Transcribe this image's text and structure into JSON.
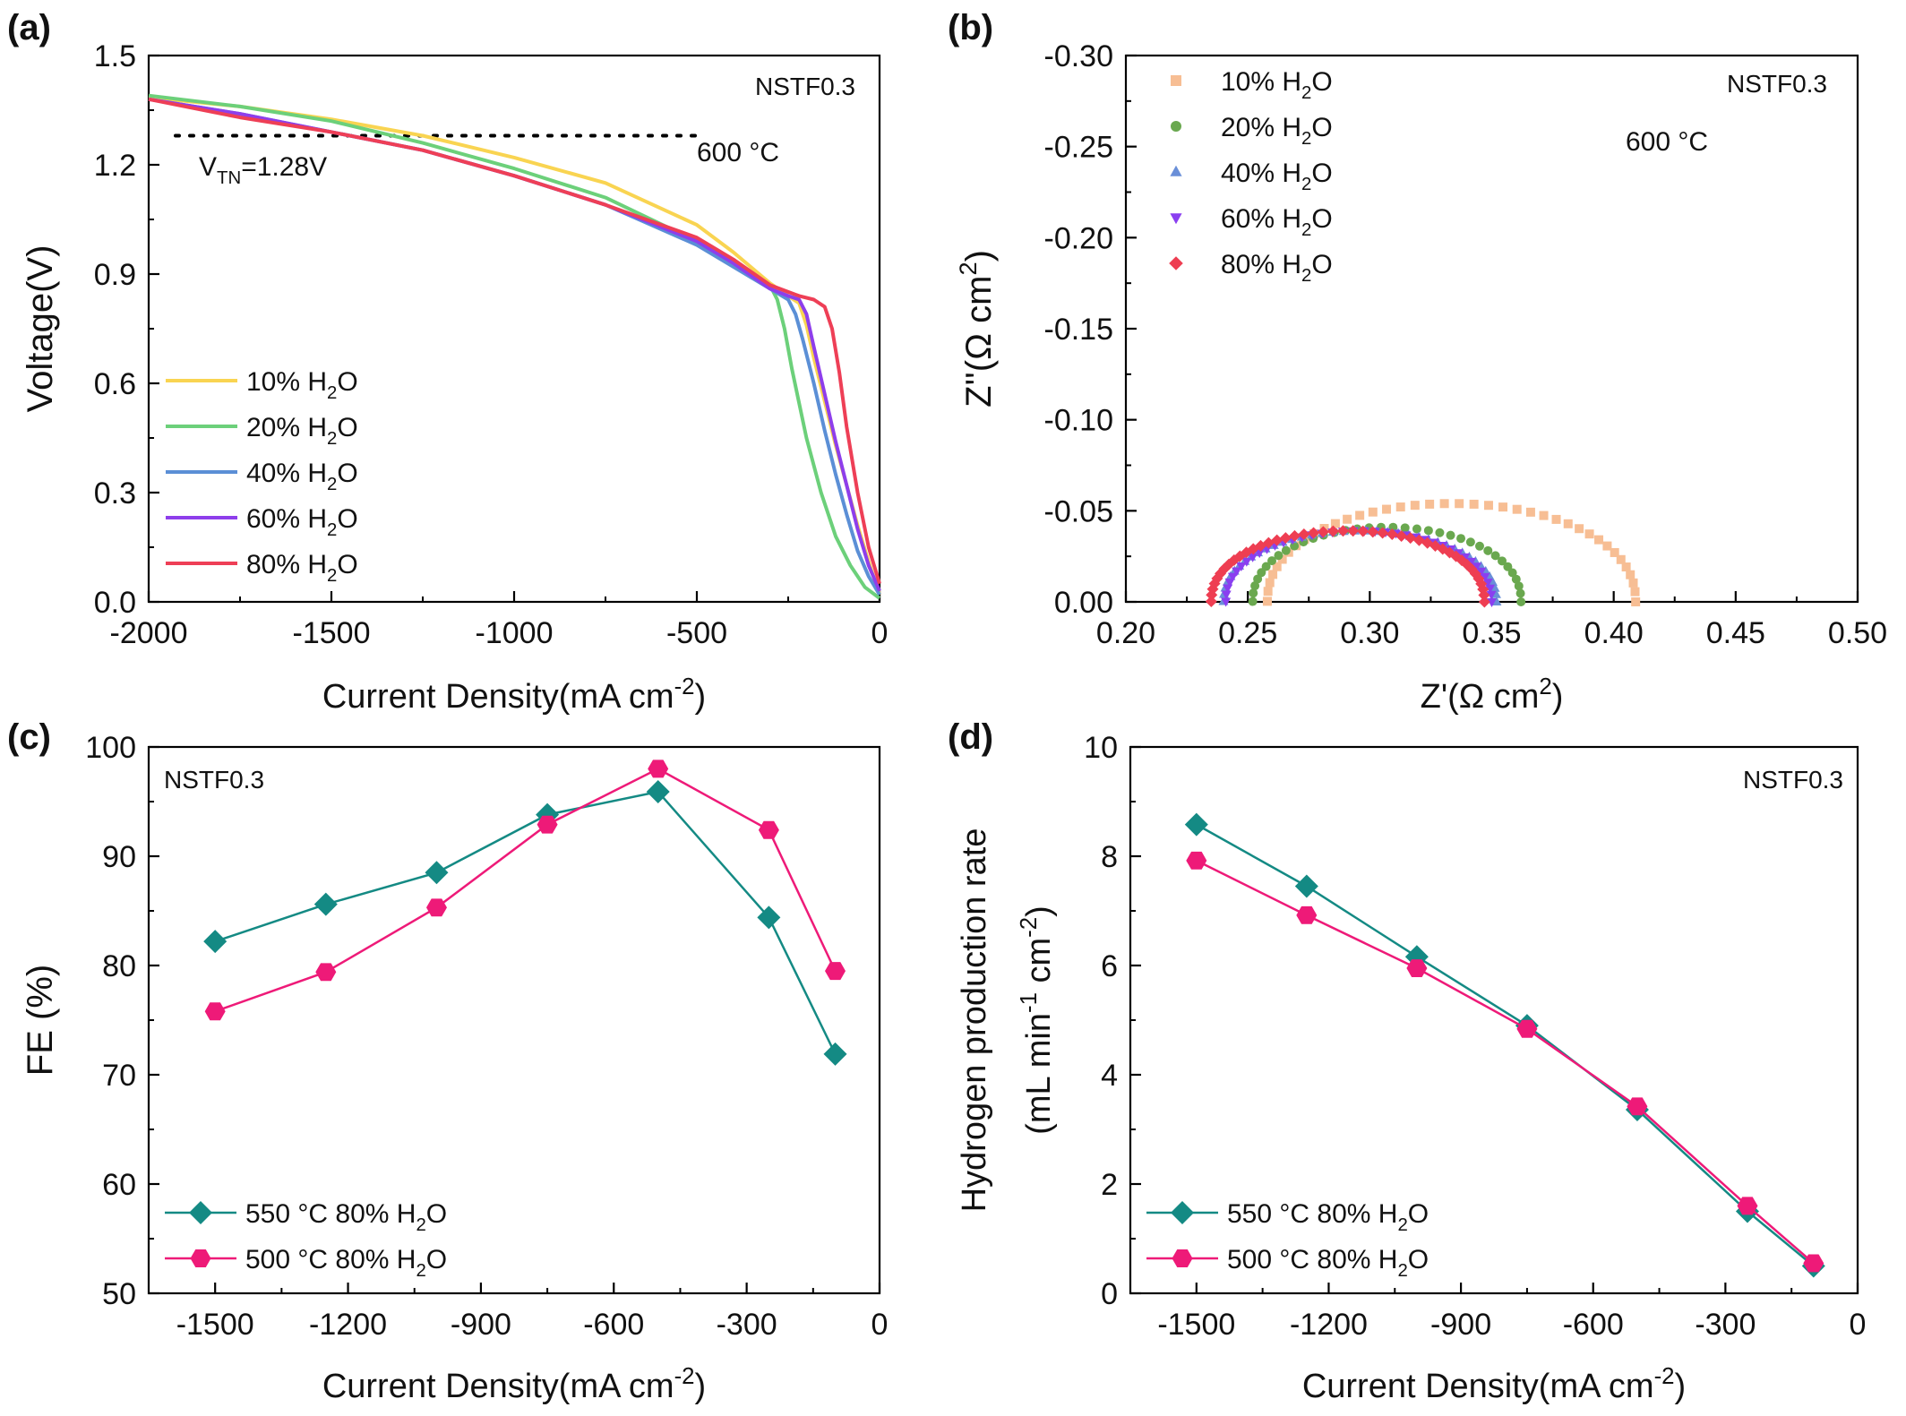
{
  "chart_data": [
    {
      "panel": "(a)",
      "type": "line",
      "xlabel": "Current Density(mA cm",
      "xlabel_sup": "-2",
      "xlabel_end": ")",
      "ylabel": "Voltage(V)",
      "xlim": [
        -2000,
        0
      ],
      "ylim": [
        0,
        1.5
      ],
      "xticks": [
        -2000,
        -1500,
        -1000,
        -500,
        0
      ],
      "yticks": [
        0.0,
        0.3,
        0.6,
        0.9,
        1.2,
        1.5
      ],
      "ytick_labels": [
        "0.0",
        "0.3",
        "0.6",
        "0.9",
        "1.2",
        "1.5"
      ],
      "annotations": {
        "sample": "NSTF0.3",
        "temperature": "600 °C",
        "thermoneutral_main": "V",
        "thermoneutral_sub": "TN",
        "thermoneutral_rest": "=1.28V",
        "thermoneutral_value": 1.28
      },
      "legend_position": "left",
      "series": [
        {
          "name": "10% H",
          "name_sub": "2",
          "name_end": "O",
          "color": "#F9D451",
          "x": [
            -2000,
            -1750,
            -1500,
            -1250,
            -1000,
            -750,
            -500,
            -400,
            -300,
            -250,
            -220,
            -200,
            -180,
            -150,
            -120,
            -90,
            -60,
            -30,
            0
          ],
          "y": [
            1.385,
            1.36,
            1.325,
            1.28,
            1.22,
            1.15,
            1.035,
            0.96,
            0.875,
            0.84,
            0.82,
            0.76,
            0.67,
            0.55,
            0.43,
            0.32,
            0.21,
            0.11,
            0.02
          ]
        },
        {
          "name": "20% H",
          "name_sub": "2",
          "name_end": "O",
          "color": "#6CD07A",
          "x": [
            -2000,
            -1750,
            -1500,
            -1250,
            -1000,
            -750,
            -500,
            -350,
            -300,
            -280,
            -260,
            -240,
            -200,
            -160,
            -120,
            -80,
            -40,
            0
          ],
          "y": [
            1.39,
            1.36,
            1.32,
            1.26,
            1.19,
            1.11,
            0.99,
            0.89,
            0.87,
            0.83,
            0.75,
            0.64,
            0.45,
            0.3,
            0.18,
            0.1,
            0.04,
            0.01
          ]
        },
        {
          "name": "40% H",
          "name_sub": "2",
          "name_end": "O",
          "color": "#5B8FD6",
          "x": [
            -2000,
            -1750,
            -1500,
            -1250,
            -1000,
            -750,
            -500,
            -400,
            -300,
            -250,
            -230,
            -210,
            -180,
            -150,
            -120,
            -90,
            -60,
            -30,
            0
          ],
          "y": [
            1.38,
            1.34,
            1.29,
            1.24,
            1.17,
            1.09,
            0.98,
            0.92,
            0.86,
            0.83,
            0.79,
            0.72,
            0.6,
            0.47,
            0.35,
            0.24,
            0.14,
            0.07,
            0.02
          ]
        },
        {
          "name": "60% H",
          "name_sub": "2",
          "name_end": "O",
          "color": "#8E3EEB",
          "x": [
            -2000,
            -1750,
            -1500,
            -1250,
            -1000,
            -750,
            -500,
            -400,
            -300,
            -250,
            -220,
            -200,
            -180,
            -150,
            -120,
            -90,
            -60,
            -30,
            0
          ],
          "y": [
            1.38,
            1.34,
            1.29,
            1.24,
            1.17,
            1.09,
            0.99,
            0.93,
            0.86,
            0.84,
            0.83,
            0.79,
            0.7,
            0.57,
            0.44,
            0.32,
            0.2,
            0.1,
            0.03
          ]
        },
        {
          "name": "80% H",
          "name_sub": "2",
          "name_end": "O",
          "color": "#EE3F56",
          "x": [
            -2000,
            -1750,
            -1500,
            -1250,
            -1000,
            -750,
            -500,
            -400,
            -300,
            -220,
            -180,
            -150,
            -130,
            -110,
            -90,
            -60,
            -30,
            0
          ],
          "y": [
            1.38,
            1.33,
            1.29,
            1.24,
            1.17,
            1.09,
            1.0,
            0.94,
            0.87,
            0.84,
            0.83,
            0.81,
            0.75,
            0.63,
            0.48,
            0.3,
            0.15,
            0.05
          ]
        }
      ]
    },
    {
      "panel": "(b)",
      "type": "scatter",
      "xlabel": "Z'(Ω cm",
      "xlabel_sup": "2",
      "xlabel_end": ")",
      "ylabel": "Z''(Ω cm",
      "ylabel_sup": "2",
      "ylabel_end": ")",
      "xlim": [
        0.2,
        0.5
      ],
      "ylim": [
        0.0,
        -0.3
      ],
      "xticks": [
        0.2,
        0.25,
        0.3,
        0.35,
        0.4,
        0.45,
        0.5
      ],
      "xtick_labels": [
        "0.20",
        "0.25",
        "0.30",
        "0.35",
        "0.40",
        "0.45",
        "0.50"
      ],
      "yticks": [
        0.0,
        -0.05,
        -0.1,
        -0.15,
        -0.2,
        -0.25,
        -0.3
      ],
      "ytick_labels": [
        "0.00",
        "-0.05",
        "-0.10",
        "-0.15",
        "-0.20",
        "-0.25",
        "-0.30"
      ],
      "annotations": {
        "sample": "NSTF0.3",
        "temperature": "600 °C"
      },
      "legend_position": "top-left",
      "series": [
        {
          "name": "10% H",
          "name_sub": "2",
          "name_end": "O",
          "color": "#F7BE94",
          "marker": "square",
          "R0": 0.258,
          "R1": 0.409,
          "peak": 0.054,
          "n": 40
        },
        {
          "name": "20% H",
          "name_sub": "2",
          "name_end": "O",
          "color": "#6AA84F",
          "marker": "circle",
          "R0": 0.252,
          "R1": 0.362,
          "peak": 0.041,
          "n": 36
        },
        {
          "name": "40% H",
          "name_sub": "2",
          "name_end": "O",
          "color": "#6A8FD8",
          "marker": "triangle-up",
          "R0": 0.24,
          "R1": 0.352,
          "peak": 0.039,
          "n": 40
        },
        {
          "name": "60% H",
          "name_sub": "2",
          "name_end": "O",
          "color": "#8A3FF0",
          "marker": "triangle-down",
          "R0": 0.241,
          "R1": 0.35,
          "peak": 0.039,
          "n": 40
        },
        {
          "name": "80% H",
          "name_sub": "2",
          "name_end": "O",
          "color": "#EE3E52",
          "marker": "diamond",
          "R0": 0.235,
          "R1": 0.347,
          "peak": 0.039,
          "n": 44
        }
      ]
    },
    {
      "panel": "(c)",
      "type": "line",
      "xlabel": "Current Density(mA cm",
      "xlabel_sup": "-2",
      "xlabel_end": ")",
      "ylabel": "FE (%)",
      "xlim": [
        -1650,
        0
      ],
      "ylim": [
        50,
        100
      ],
      "xticks": [
        -1500,
        -1200,
        -900,
        -600,
        -300,
        0
      ],
      "yticks": [
        50,
        60,
        70,
        80,
        90,
        100
      ],
      "annotations": {
        "sample": "NSTF0.3"
      },
      "legend_position": "bottom-left",
      "series": [
        {
          "name": "550 °C 80% H",
          "name_sub": "2",
          "name_end": "O",
          "color": "#148A84",
          "marker": "diamond",
          "x": [
            -1500,
            -1250,
            -1000,
            -750,
            -500,
            -250,
            -100
          ],
          "y": [
            82.2,
            85.6,
            88.5,
            93.8,
            95.9,
            84.4,
            71.9
          ]
        },
        {
          "name": "500 °C 80% H",
          "name_sub": "2",
          "name_end": "O",
          "color": "#EE1A78",
          "marker": "hexagon",
          "x": [
            -1500,
            -1250,
            -1000,
            -750,
            -500,
            -250,
            -100
          ],
          "y": [
            75.8,
            79.4,
            85.3,
            92.9,
            98.0,
            92.4,
            79.5
          ]
        }
      ]
    },
    {
      "panel": "(d)",
      "type": "line",
      "xlabel": "Current Density(mA cm",
      "xlabel_sup": "-2",
      "xlabel_end": ")",
      "ylabel_line1": "Hydrogen production rate",
      "ylabel_line2": "(mL min",
      "ylabel_line2_sup1": "-1",
      "ylabel_line2_mid": " cm",
      "ylabel_line2_sup2": "-2",
      "ylabel_line2_end": ")",
      "xlim": [
        -1650,
        0
      ],
      "ylim": [
        0,
        10
      ],
      "xticks": [
        -1500,
        -1200,
        -900,
        -600,
        -300,
        0
      ],
      "yticks": [
        0,
        2,
        4,
        6,
        8,
        10
      ],
      "annotations": {
        "sample": "NSTF0.3"
      },
      "legend_position": "bottom-left",
      "series": [
        {
          "name": "550 °C 80% H",
          "name_sub": "2",
          "name_end": "O",
          "color": "#148A84",
          "marker": "diamond",
          "x": [
            -1500,
            -1250,
            -1000,
            -750,
            -500,
            -250,
            -100
          ],
          "y": [
            8.58,
            7.45,
            6.16,
            4.9,
            3.36,
            1.5,
            0.5
          ]
        },
        {
          "name": "500 °C 80% H",
          "name_sub": "2",
          "name_end": "O",
          "color": "#EE1A78",
          "marker": "hexagon",
          "x": [
            -1500,
            -1250,
            -1000,
            -750,
            -500,
            -250,
            -100
          ],
          "y": [
            7.92,
            6.92,
            5.95,
            4.84,
            3.42,
            1.6,
            0.55
          ]
        }
      ]
    }
  ]
}
